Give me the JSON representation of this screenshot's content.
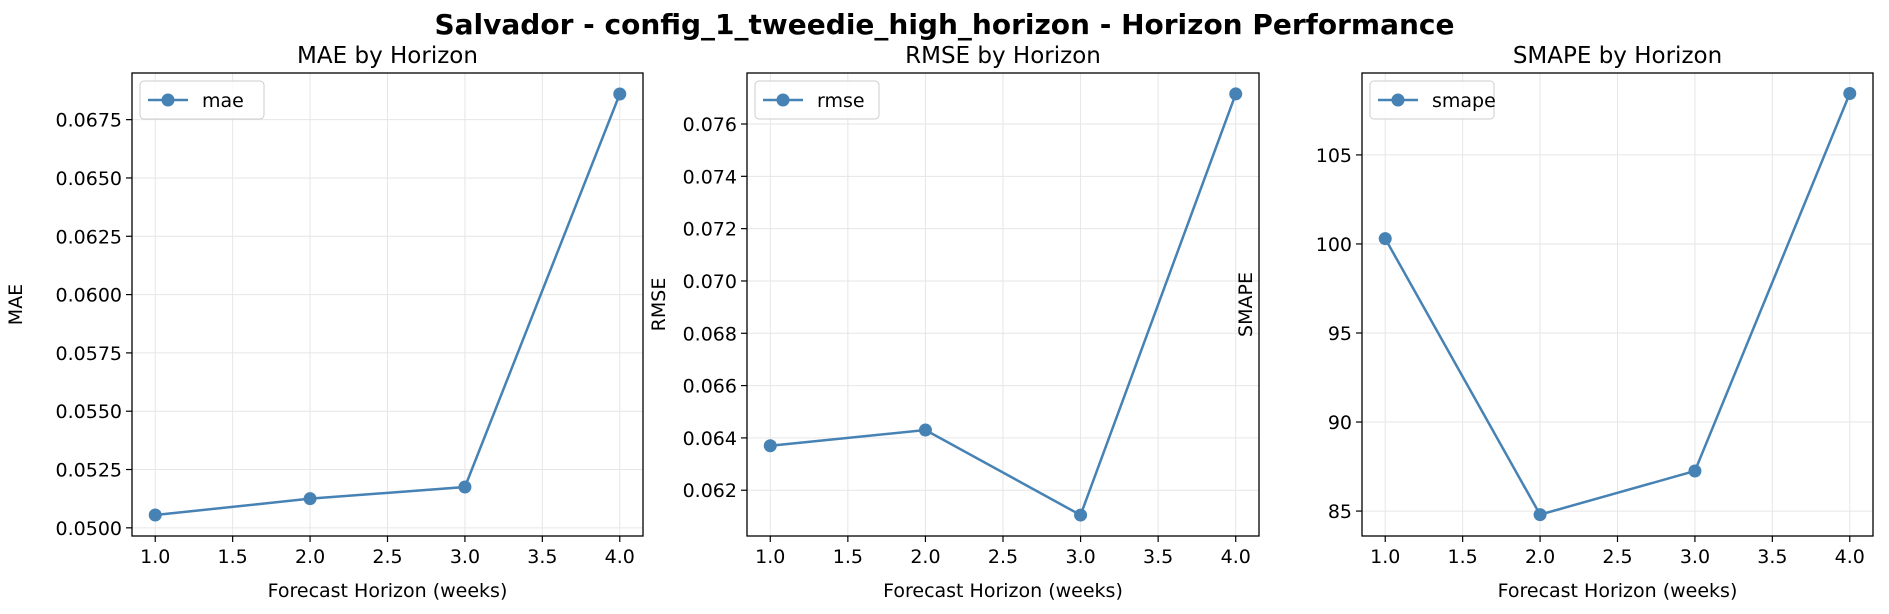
{
  "figure_title": "Salvador - config_1_tweedie_high_horizon - Horizon Performance",
  "line_color": "#4682b4",
  "chart_data": [
    {
      "type": "line",
      "title": "MAE by Horizon",
      "xlabel": "Forecast Horizon (weeks)",
      "ylabel": "MAE",
      "x": [
        1.0,
        2.0,
        3.0,
        4.0
      ],
      "series": [
        {
          "name": "mae",
          "values": [
            0.05055,
            0.05125,
            0.05175,
            0.0686
          ]
        }
      ],
      "xlim": [
        0.85,
        4.15
      ],
      "ylim": [
        0.04965,
        0.0695
      ],
      "xticks": [
        1.0,
        1.5,
        2.0,
        2.5,
        3.0,
        3.5,
        4.0
      ],
      "xtick_labels": [
        "1.0",
        "1.5",
        "2.0",
        "2.5",
        "3.0",
        "3.5",
        "4.0"
      ],
      "yticks": [
        0.05,
        0.0525,
        0.055,
        0.0575,
        0.06,
        0.0625,
        0.065,
        0.0675
      ],
      "ytick_labels": [
        "0.0500",
        "0.0525",
        "0.0550",
        "0.0575",
        "0.0600",
        "0.0625",
        "0.0650",
        "0.0675"
      ],
      "grid": true,
      "legend": "top-left"
    },
    {
      "type": "line",
      "title": "RMSE by Horizon",
      "xlabel": "Forecast Horizon (weeks)",
      "ylabel": "RMSE",
      "x": [
        1.0,
        2.0,
        3.0,
        4.0
      ],
      "series": [
        {
          "name": "rmse",
          "values": [
            0.0637,
            0.0643,
            0.06105,
            0.07715
          ]
        }
      ],
      "xlim": [
        0.85,
        4.15
      ],
      "ylim": [
        0.06025,
        0.07795
      ],
      "xticks": [
        1.0,
        1.5,
        2.0,
        2.5,
        3.0,
        3.5,
        4.0
      ],
      "xtick_labels": [
        "1.0",
        "1.5",
        "2.0",
        "2.5",
        "3.0",
        "3.5",
        "4.0"
      ],
      "yticks": [
        0.062,
        0.064,
        0.066,
        0.068,
        0.07,
        0.072,
        0.074,
        0.076
      ],
      "ytick_labels": [
        "0.062",
        "0.064",
        "0.066",
        "0.068",
        "0.070",
        "0.072",
        "0.074",
        "0.076"
      ],
      "grid": true,
      "legend": "top-left"
    },
    {
      "type": "line",
      "title": "SMAPE by Horizon",
      "xlabel": "Forecast Horizon (weeks)",
      "ylabel": "SMAPE",
      "x": [
        1.0,
        2.0,
        3.0,
        4.0
      ],
      "series": [
        {
          "name": "smape",
          "values": [
            100.3,
            84.8,
            87.25,
            108.45
          ]
        }
      ],
      "xlim": [
        0.85,
        4.15
      ],
      "ylim": [
        83.6,
        109.6
      ],
      "xticks": [
        1.0,
        1.5,
        2.0,
        2.5,
        3.0,
        3.5,
        4.0
      ],
      "xtick_labels": [
        "1.0",
        "1.5",
        "2.0",
        "2.5",
        "3.0",
        "3.5",
        "4.0"
      ],
      "yticks": [
        85,
        90,
        95,
        100,
        105
      ],
      "ytick_labels": [
        "85",
        "90",
        "95",
        "100",
        "105"
      ],
      "grid": true,
      "legend": "top-left"
    }
  ]
}
